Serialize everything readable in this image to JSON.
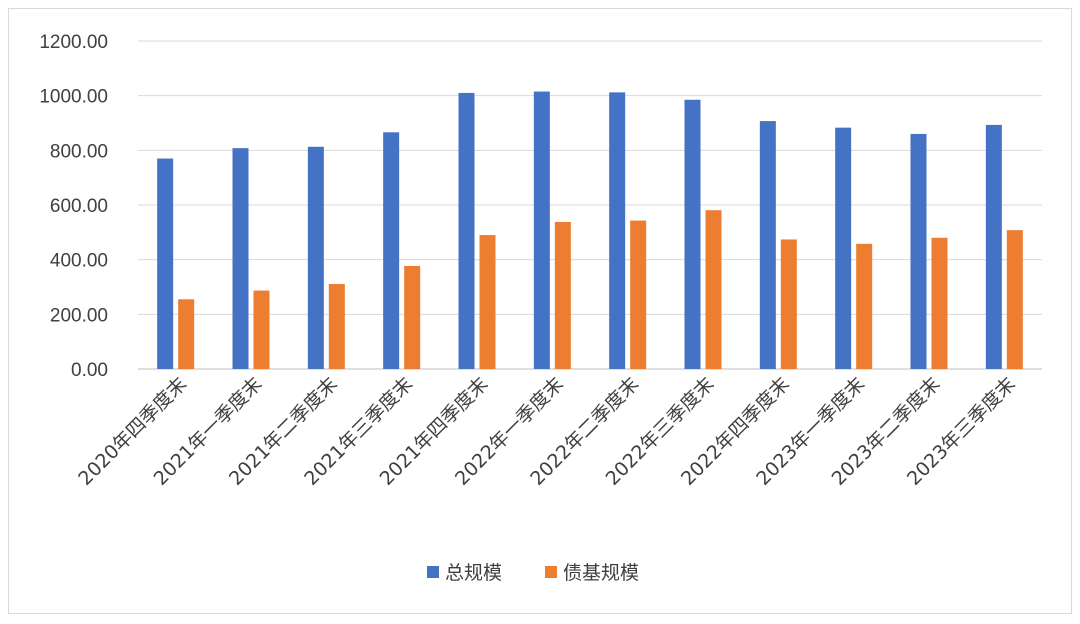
{
  "chart_data": {
    "type": "bar",
    "categories": [
      "2020年四季度末",
      "2021年一季度末",
      "2021年二季度末",
      "2021年三季度末",
      "2021年四季度末",
      "2022年一季度末",
      "2022年二季度末",
      "2022年三季度末",
      "2022年四季度末",
      "2023年一季度末",
      "2023年二季度末",
      "2023年三季度末"
    ],
    "series": [
      {
        "name": "总规模",
        "color": "#4472C4",
        "values": [
          770,
          808,
          813,
          866,
          1010,
          1015,
          1012,
          985,
          907,
          883,
          860,
          893
        ]
      },
      {
        "name": "债基规模",
        "color": "#ED7D31",
        "values": [
          255,
          287,
          311,
          377,
          490,
          538,
          543,
          581,
          474,
          458,
          480,
          508
        ]
      }
    ],
    "ylim": [
      0,
      1200
    ],
    "yticks": [
      "0.00",
      "200.00",
      "400.00",
      "600.00",
      "800.00",
      "1000.00",
      "1200.00"
    ],
    "grid": true,
    "legend": "bottom"
  }
}
